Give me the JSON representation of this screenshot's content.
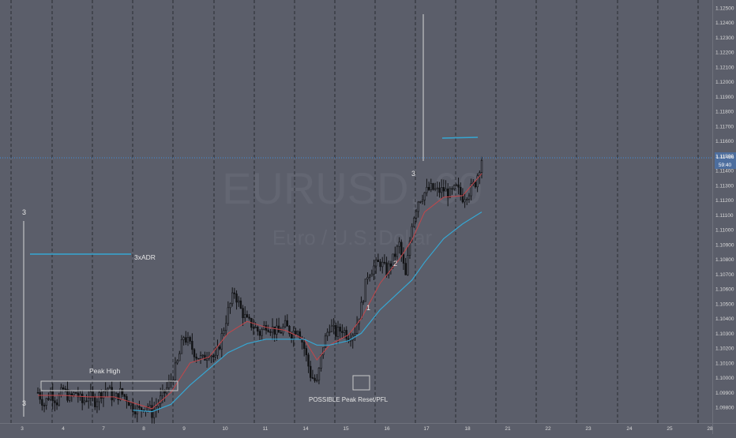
{
  "chart_data": {
    "type": "candlestick",
    "symbol_watermark": "EURUSD, 60",
    "description_watermark": "Euro / U.S. Dollar",
    "x_ticks": [
      "3",
      "4",
      "7",
      "8",
      "9",
      "10",
      "11",
      "14",
      "15",
      "16",
      "17",
      "18",
      "21",
      "22",
      "23",
      "24",
      "25",
      "28"
    ],
    "y_ticks": [
      "1.12500",
      "1.12400",
      "1.12300",
      "1.12200",
      "1.12100",
      "1.12000",
      "1.11900",
      "1.11800",
      "1.11700",
      "1.11600",
      "1.11500",
      "1.11400",
      "1.11300",
      "1.11200",
      "1.11100",
      "1.11000",
      "1.10900",
      "1.10800",
      "1.10700",
      "1.10600",
      "1.10500",
      "1.10400",
      "1.10300",
      "1.10200",
      "1.10100",
      "1.10000",
      "1.09900",
      "1.09800"
    ],
    "ylim": [
      1.0975,
      1.1255
    ],
    "current_price": "1.11486",
    "countdown": "59:40",
    "annotations": {
      "adr": "3xADR",
      "peak_high": "Peak High",
      "peak_reset": "POSSIBLE Peak Reset/PFL",
      "wave_1": "1",
      "wave_2": "2",
      "wave_3_top": "3",
      "wave_3_left_top": "3",
      "wave_3_left_bottom": "3"
    },
    "close_path": [
      [
        0,
        1.099
      ],
      [
        3,
        1.0982
      ],
      [
        6,
        1.099
      ],
      [
        9,
        1.0984
      ],
      [
        12,
        1.0992
      ],
      [
        15,
        1.0986
      ],
      [
        18,
        1.099
      ],
      [
        21,
        1.0983
      ],
      [
        24,
        1.0988
      ],
      [
        27,
        1.0984
      ],
      [
        30,
        1.099
      ],
      [
        33,
        1.0993
      ],
      [
        36,
        1.0985
      ],
      [
        39,
        1.099
      ],
      [
        42,
        1.0986
      ],
      [
        45,
        1.098
      ],
      [
        48,
        1.0978
      ],
      [
        51,
        1.0982
      ],
      [
        54,
        1.0976
      ],
      [
        57,
        1.0983
      ],
      [
        60,
        1.099
      ],
      [
        63,
        1.0998
      ],
      [
        66,
        1.101
      ],
      [
        69,
        1.1028
      ],
      [
        72,
        1.1022
      ],
      [
        75,
        1.1015
      ],
      [
        78,
        1.1012
      ],
      [
        81,
        1.1018
      ],
      [
        84,
        1.1012
      ],
      [
        87,
        1.1028
      ],
      [
        90,
        1.1045
      ],
      [
        93,
        1.1058
      ],
      [
        96,
        1.1046
      ],
      [
        99,
        1.1038
      ],
      [
        102,
        1.1035
      ],
      [
        105,
        1.103
      ],
      [
        108,
        1.1036
      ],
      [
        111,
        1.1033
      ],
      [
        114,
        1.103
      ],
      [
        117,
        1.1035
      ],
      [
        120,
        1.103
      ],
      [
        123,
        1.1034
      ],
      [
        126,
        1.102
      ],
      [
        129,
        1.1002
      ],
      [
        132,
        1.0996
      ],
      [
        135,
        1.1022
      ],
      [
        138,
        1.1035
      ],
      [
        141,
        1.103
      ],
      [
        144,
        1.1033
      ],
      [
        147,
        1.1028
      ],
      [
        150,
        1.1032
      ],
      [
        153,
        1.1048
      ],
      [
        156,
        1.107
      ],
      [
        159,
        1.1075
      ],
      [
        162,
        1.1078
      ],
      [
        165,
        1.1072
      ],
      [
        168,
        1.108
      ],
      [
        171,
        1.109
      ],
      [
        174,
        1.1068
      ],
      [
        177,
        1.1105
      ],
      [
        180,
        1.112
      ],
      [
        183,
        1.1125
      ],
      [
        186,
        1.1128
      ],
      [
        189,
        1.1126
      ],
      [
        192,
        1.1127
      ],
      [
        195,
        1.1124
      ],
      [
        198,
        1.1128
      ],
      [
        201,
        1.1122
      ],
      [
        204,
        1.1126
      ],
      [
        207,
        1.1132
      ],
      [
        210,
        1.1148
      ]
    ],
    "ema_fast": [
      [
        0,
        1.0988
      ],
      [
        12,
        1.0988
      ],
      [
        24,
        1.0987
      ],
      [
        36,
        1.0987
      ],
      [
        45,
        1.0983
      ],
      [
        54,
        1.0979
      ],
      [
        63,
        1.099
      ],
      [
        72,
        1.101
      ],
      [
        81,
        1.1014
      ],
      [
        90,
        1.103
      ],
      [
        99,
        1.1038
      ],
      [
        108,
        1.1034
      ],
      [
        117,
        1.1032
      ],
      [
        126,
        1.1026
      ],
      [
        132,
        1.1012
      ],
      [
        138,
        1.1022
      ],
      [
        147,
        1.1029
      ],
      [
        153,
        1.104
      ],
      [
        162,
        1.1064
      ],
      [
        171,
        1.108
      ],
      [
        177,
        1.1093
      ],
      [
        183,
        1.1112
      ],
      [
        192,
        1.1122
      ],
      [
        201,
        1.1123
      ],
      [
        210,
        1.1138
      ]
    ],
    "ema_slow": [
      [
        45,
        1.0978
      ],
      [
        54,
        1.0977
      ],
      [
        63,
        1.0982
      ],
      [
        72,
        1.0995
      ],
      [
        81,
        1.1006
      ],
      [
        90,
        1.1017
      ],
      [
        99,
        1.1023
      ],
      [
        108,
        1.1026
      ],
      [
        117,
        1.1026
      ],
      [
        126,
        1.1026
      ],
      [
        132,
        1.1022
      ],
      [
        138,
        1.1022
      ],
      [
        147,
        1.1025
      ],
      [
        153,
        1.103
      ],
      [
        162,
        1.1046
      ],
      [
        171,
        1.1058
      ],
      [
        177,
        1.1066
      ],
      [
        183,
        1.1078
      ],
      [
        192,
        1.1094
      ],
      [
        201,
        1.1104
      ],
      [
        210,
        1.1112
      ]
    ]
  }
}
